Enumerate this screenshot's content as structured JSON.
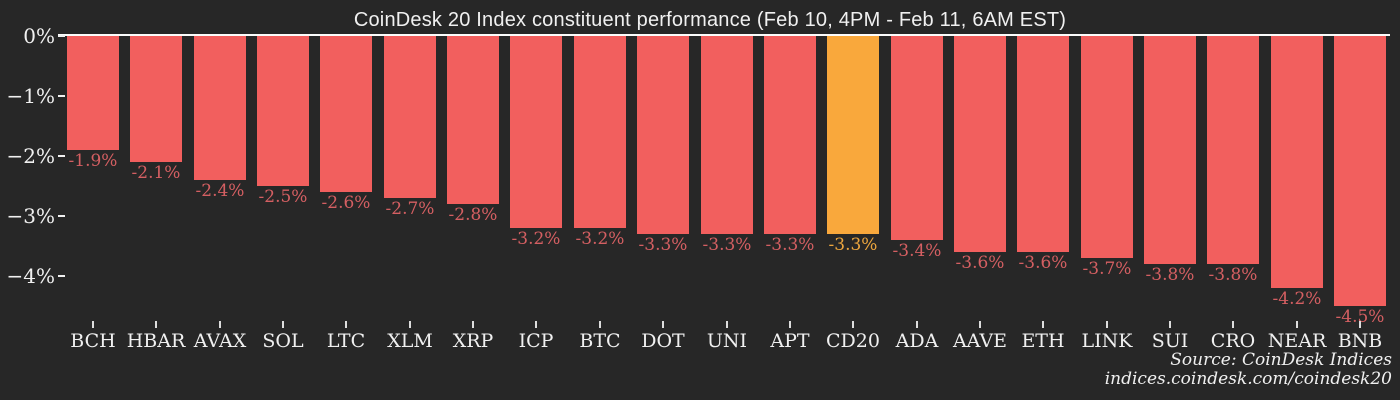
{
  "title": "CoinDesk 20 Index constituent performance (Feb 10, 4PM - Feb 11, 6AM EST)",
  "source": {
    "line1": "Source: CoinDesk Indices",
    "line2": "indices.coindesk.com/coindesk20"
  },
  "colors": {
    "background": "#272727",
    "bar": "#f25f5e",
    "highlight_bar": "#f9a83c",
    "bar_label": "#d45f62",
    "highlight_bar_label": "#eda63e",
    "axis_text": "#f0f0f0",
    "axis_line": "#fcfcfc",
    "tick": "#dddddd"
  },
  "chart_data": {
    "type": "bar",
    "title": "CoinDesk 20 Index constituent performance (Feb 10, 4PM - Feb 11, 6AM EST)",
    "categories": [
      "BCH",
      "HBAR",
      "AVAX",
      "SOL",
      "LTC",
      "XLM",
      "XRP",
      "ICP",
      "BTC",
      "DOT",
      "UNI",
      "APT",
      "CD20",
      "ADA",
      "AAVE",
      "ETH",
      "LINK",
      "SUI",
      "CRO",
      "NEAR",
      "BNB"
    ],
    "values": [
      -1.9,
      -2.1,
      -2.4,
      -2.5,
      -2.6,
      -2.7,
      -2.8,
      -3.2,
      -3.2,
      -3.3,
      -3.3,
      -3.3,
      -3.3,
      -3.4,
      -3.6,
      -3.6,
      -3.7,
      -3.8,
      -3.8,
      -4.2,
      -4.5
    ],
    "bar_labels": [
      "-1.9%",
      "-2.1%",
      "-2.4%",
      "-2.5%",
      "-2.6%",
      "-2.7%",
      "-2.8%",
      "-3.2%",
      "-3.2%",
      "-3.3%",
      "-3.3%",
      "-3.3%",
      "-3.3%",
      "-3.4%",
      "-3.6%",
      "-3.6%",
      "-3.7%",
      "-3.8%",
      "-3.8%",
      "-4.2%",
      "-4.5%"
    ],
    "highlight_category": "CD20",
    "xlabel": "",
    "ylabel": "",
    "ylim": [
      -4.7,
      0
    ],
    "grid": false,
    "legend": "none",
    "y_ticks": [
      {
        "label": "0%",
        "value": 0
      },
      {
        "label": "−1%",
        "value": -1
      },
      {
        "label": "−2%",
        "value": -2
      },
      {
        "label": "−3%",
        "value": -3
      },
      {
        "label": "−4%",
        "value": -4
      }
    ]
  }
}
